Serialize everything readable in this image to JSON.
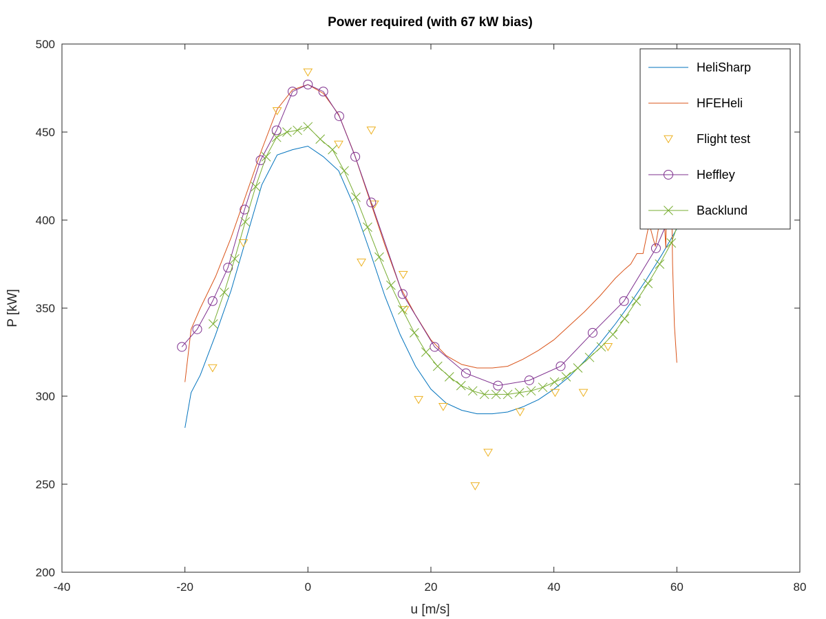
{
  "chart_data": {
    "type": "line",
    "title": "Power required (with 67 kW bias)",
    "xlabel": "u [m/s]",
    "ylabel": "P [kW]",
    "xlim": [
      -40,
      80
    ],
    "ylim": [
      200,
      500
    ],
    "xticks": [
      -40,
      -20,
      0,
      20,
      40,
      60,
      80
    ],
    "yticks": [
      200,
      250,
      300,
      350,
      400,
      450,
      500
    ],
    "grid": false,
    "legend_position": "top-right",
    "series": [
      {
        "name": "HeliSharp",
        "color": "#0072bd",
        "marker": "none",
        "x": [
          -20,
          -19,
          -17.5,
          -15,
          -12.5,
          -10,
          -7.5,
          -5,
          -2.5,
          0,
          2.5,
          5,
          7.5,
          10,
          12.5,
          15,
          17.5,
          20,
          22.5,
          25,
          27.5,
          30,
          32.5,
          35,
          37.5,
          40,
          42.5,
          45,
          47.5,
          50,
          52.5,
          55,
          57.5,
          60
        ],
        "y": [
          282,
          302,
          312,
          335,
          360,
          390,
          420,
          437,
          440,
          442,
          436,
          428,
          408,
          383,
          357,
          335,
          317,
          304,
          296,
          292,
          290,
          290,
          291,
          294,
          298,
          304,
          311,
          320,
          330,
          341,
          353,
          366,
          380,
          395
        ]
      },
      {
        "name": "HFEHeli",
        "color": "#d95319",
        "marker": "none",
        "x": [
          -20,
          -19,
          -17.5,
          -15,
          -12.5,
          -10,
          -7.5,
          -5,
          -2.5,
          0,
          2.5,
          5,
          7.5,
          10,
          12.5,
          15,
          17.5,
          20,
          22.5,
          25,
          27.5,
          30,
          32.5,
          35,
          37.5,
          40,
          42.5,
          45,
          47.5,
          50,
          51.5,
          52.5,
          53.5,
          54.5,
          55.5,
          56.5,
          57.0,
          57.7,
          58.2,
          58.6,
          59.0,
          59.3,
          59.6,
          60.0
        ],
        "y": [
          308,
          338,
          350,
          368,
          390,
          415,
          440,
          463,
          474,
          477,
          472,
          460,
          438,
          412,
          386,
          362,
          346,
          332,
          323,
          318,
          316,
          316,
          317,
          321,
          326,
          332,
          340,
          348,
          357,
          367,
          372,
          375,
          381,
          381,
          398,
          385,
          395,
          416,
          384,
          468,
          450,
          375,
          340,
          319
        ]
      },
      {
        "name": "Flight test",
        "color": "#edb120",
        "marker": "triangle-down",
        "line": "none",
        "x": [
          -15.5,
          -10.5,
          -5,
          0,
          5,
          8.7,
          10.3,
          10.8,
          15.5,
          15.7,
          18,
          22,
          27.2,
          29.3,
          34.5,
          40.2,
          44.8,
          48.8,
          58.8
        ],
        "y": [
          316,
          387,
          462,
          484,
          443,
          376,
          451,
          409,
          369,
          349,
          298,
          294,
          249,
          268,
          291,
          302,
          302,
          328,
          446
        ]
      },
      {
        "name": "Heffley",
        "color": "#7e2f8e",
        "marker": "circle",
        "x": [
          -20.5,
          -18,
          -15.5,
          -13,
          -10.3,
          -7.7,
          -5.1,
          -2.5,
          0,
          2.5,
          5.1,
          7.7,
          10.3,
          15.4,
          20.6,
          25.7,
          30.9,
          36,
          41.1,
          46.3,
          51.4,
          56.6,
          61.7
        ],
        "y": [
          328,
          338,
          354,
          373,
          406,
          434,
          451,
          473,
          477,
          473,
          459,
          436,
          410,
          358,
          328,
          313,
          306,
          309,
          317,
          336,
          354,
          384,
          425
        ]
      },
      {
        "name": "Backlund",
        "color": "#77ac30",
        "marker": "x",
        "x": [
          -15.4,
          -13.6,
          -11.9,
          -10.2,
          -8.5,
          -6.8,
          -5.1,
          -3.4,
          -1.7,
          0,
          2,
          4,
          5.9,
          7.8,
          9.7,
          11.6,
          13.5,
          15.4,
          17.3,
          19.2,
          21.1,
          23,
          24.9,
          26.8,
          28.7,
          30.6,
          32.5,
          34.4,
          36.3,
          38.2,
          40.1,
          42,
          43.9,
          45.8,
          47.7,
          49.6,
          51.5,
          53.4,
          55.3,
          57.2,
          59.1,
          61
        ],
        "y": [
          341,
          359,
          378,
          399,
          419,
          436,
          447,
          450,
          451,
          453,
          446,
          440,
          428,
          413,
          396,
          379,
          363,
          349,
          336,
          325,
          317,
          311,
          306,
          303,
          301,
          301,
          301,
          302,
          303,
          305,
          308,
          311,
          316,
          322,
          328,
          335,
          344,
          354,
          364,
          375,
          387,
          406
        ]
      }
    ]
  }
}
